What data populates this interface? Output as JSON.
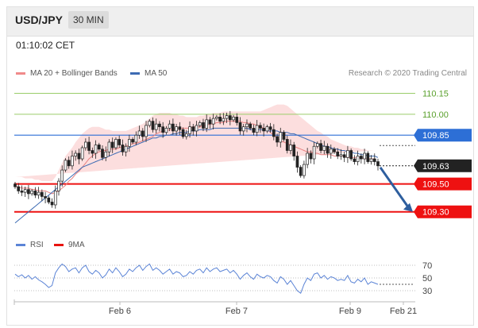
{
  "header": {
    "pair": "USD/JPY",
    "timeframe": "30 MIN"
  },
  "time": "01:10:02 CET",
  "legend": {
    "items": [
      {
        "label": "MA 20 + Bollinger Bands",
        "color": "#f08a8a"
      },
      {
        "label": "MA 50",
        "color": "#3d6bb3"
      }
    ],
    "credit": "Research © 2020 Trading Central"
  },
  "rsi_legend": {
    "items": [
      {
        "label": "RSI",
        "color": "#5b84d6"
      },
      {
        "label": "9MA",
        "color": "#e8140f"
      }
    ]
  },
  "chart_data": [
    {
      "type": "candlestick",
      "title": "",
      "x_ticks": [
        "Feb 6",
        "Feb 7",
        "Feb 9",
        "Feb 21"
      ],
      "price_levels": [
        {
          "value": 110.15,
          "label": "110.15",
          "style": "resistance-line",
          "color": "#9acd6a"
        },
        {
          "value": 110.0,
          "label": "110.00",
          "style": "resistance-line",
          "color": "#9acd6a"
        },
        {
          "value": 109.85,
          "label": "109.85",
          "style": "pivot",
          "color": "#2d6fd6"
        },
        {
          "value": 109.63,
          "label": "109.63",
          "style": "last-price",
          "color": "#222222"
        },
        {
          "value": 109.5,
          "label": "109.50",
          "style": "support",
          "color": "#ee1111"
        },
        {
          "value": 109.3,
          "label": "109.30",
          "style": "support",
          "color": "#ee1111"
        }
      ],
      "ylim": [
        109.27,
        110.21
      ],
      "series": [
        {
          "name": "MA 20 + Bollinger Bands"
        },
        {
          "name": "MA 50"
        }
      ],
      "close": [
        109.48,
        109.45,
        109.44,
        109.46,
        109.43,
        109.45,
        109.42,
        109.44,
        109.41,
        109.4,
        109.37,
        109.35,
        109.45,
        109.52,
        109.6,
        109.67,
        109.63,
        109.7,
        109.72,
        109.68,
        109.76,
        109.8,
        109.74,
        109.72,
        109.78,
        109.75,
        109.69,
        109.73,
        109.8,
        109.76,
        109.82,
        109.78,
        109.73,
        109.77,
        109.82,
        109.8,
        109.85,
        109.88,
        109.84,
        109.92,
        109.95,
        109.89,
        109.93,
        109.91,
        109.87,
        109.9,
        109.93,
        109.88,
        109.91,
        109.89,
        109.84,
        109.86,
        109.91,
        109.88,
        109.92,
        109.94,
        109.9,
        109.96,
        109.93,
        109.97,
        109.98,
        109.95,
        109.97,
        109.99,
        109.96,
        109.98,
        109.94,
        109.88,
        109.91,
        109.93,
        109.9,
        109.87,
        109.92,
        109.9,
        109.88,
        109.91,
        109.89,
        109.84,
        109.8,
        109.87,
        109.82,
        109.74,
        109.78,
        109.7,
        109.62,
        109.56,
        109.64,
        109.72,
        109.68,
        109.77,
        109.79,
        109.74,
        109.77,
        109.72,
        109.75,
        109.73,
        109.7,
        109.71,
        109.69,
        109.74,
        109.68,
        109.66,
        109.7,
        109.68,
        109.72,
        109.66,
        109.68,
        109.66,
        109.63
      ],
      "ma20": [
        109.48,
        109.48,
        109.47,
        109.47,
        109.47,
        109.46,
        109.46,
        109.45,
        109.45,
        109.45,
        109.44,
        109.43,
        109.44,
        109.45,
        109.47,
        109.49,
        109.52,
        109.54,
        109.57,
        109.59,
        109.62,
        109.65,
        109.68,
        109.7,
        109.72,
        109.73,
        109.74,
        109.74,
        109.75,
        109.75,
        109.75,
        109.76,
        109.77,
        109.77,
        109.78,
        109.79,
        109.79,
        109.8,
        109.81,
        109.82,
        109.83,
        109.84,
        109.86,
        109.87,
        109.88,
        109.88,
        109.89,
        109.89,
        109.9,
        109.9,
        109.9,
        109.9,
        109.9,
        109.91,
        109.91,
        109.91,
        109.92,
        109.92,
        109.93,
        109.93,
        109.94,
        109.94,
        109.94,
        109.95,
        109.95,
        109.95,
        109.95,
        109.95,
        109.94,
        109.94,
        109.93,
        109.93,
        109.92,
        109.91,
        109.9,
        109.89,
        109.87,
        109.85,
        109.83,
        109.81,
        109.8,
        109.79,
        109.78,
        109.77,
        109.76,
        109.75,
        109.74,
        109.73,
        109.73,
        109.72,
        109.72,
        109.71,
        109.71,
        109.71,
        109.71,
        109.7,
        109.7,
        109.7,
        109.7,
        109.69,
        109.69,
        109.69,
        109.69,
        109.69,
        109.68,
        109.68,
        109.68,
        109.68
      ],
      "ma50": [
        109.22,
        109.24,
        109.26,
        109.28,
        109.3,
        109.32,
        109.34,
        109.36,
        109.38,
        109.4,
        109.42,
        109.44,
        109.46,
        109.48,
        109.5,
        109.52,
        109.54,
        109.56,
        109.58,
        109.6,
        109.62,
        109.63,
        109.64,
        109.65,
        109.66,
        109.67,
        109.68,
        109.69,
        109.7,
        109.71,
        109.72,
        109.73,
        109.74,
        109.75,
        109.76,
        109.77,
        109.78,
        109.79,
        109.8,
        109.81,
        109.82,
        109.83,
        109.83,
        109.84,
        109.84,
        109.85,
        109.85,
        109.86,
        109.86,
        109.87,
        109.87,
        109.87,
        109.88,
        109.88,
        109.88,
        109.89,
        109.89,
        109.89,
        109.89,
        109.9,
        109.9,
        109.9,
        109.9,
        109.9,
        109.9,
        109.9,
        109.9,
        109.9,
        109.9,
        109.9,
        109.89,
        109.89,
        109.89,
        109.89,
        109.89,
        109.88,
        109.88,
        109.88,
        109.88,
        109.87,
        109.87,
        109.87,
        109.86,
        109.86,
        109.85,
        109.84,
        109.83,
        109.82,
        109.81,
        109.8,
        109.79,
        109.78,
        109.77,
        109.77,
        109.76,
        109.75,
        109.75,
        109.74,
        109.74,
        109.73,
        109.73,
        109.72,
        109.72,
        109.71,
        109.71,
        109.7,
        109.7,
        109.7,
        109.69
      ],
      "bb_upper": [
        109.55,
        109.55,
        109.55,
        109.54,
        109.54,
        109.54,
        109.53,
        109.53,
        109.52,
        109.52,
        109.52,
        109.52,
        109.55,
        109.6,
        109.65,
        109.7,
        109.73,
        109.76,
        109.8,
        109.83,
        109.86,
        109.88,
        109.9,
        109.91,
        109.91,
        109.91,
        109.9,
        109.89,
        109.89,
        109.88,
        109.88,
        109.88,
        109.88,
        109.88,
        109.89,
        109.9,
        109.91,
        109.92,
        109.93,
        109.95,
        109.97,
        109.99,
        110.0,
        110.01,
        110.01,
        110.01,
        110.01,
        110.0,
        110.0,
        109.99,
        109.99,
        109.98,
        109.98,
        109.98,
        109.98,
        109.99,
        109.99,
        110.0,
        110.0,
        110.01,
        110.01,
        110.01,
        110.02,
        110.02,
        110.02,
        110.02,
        110.02,
        110.02,
        110.02,
        110.02,
        110.02,
        110.02,
        110.02,
        110.02,
        110.03,
        110.04,
        110.05,
        110.06,
        110.07,
        110.07,
        110.07,
        110.06,
        110.04,
        110.02,
        110.0,
        109.98,
        109.96,
        109.94,
        109.92,
        109.9,
        109.88,
        109.87,
        109.85,
        109.84,
        109.82,
        109.81,
        109.8,
        109.79,
        109.78,
        109.77,
        109.77,
        109.76,
        109.76,
        109.75,
        109.75,
        109.74,
        109.74,
        109.74
      ],
      "bb_lower": [
        109.41,
        109.4,
        109.39,
        109.39,
        109.38,
        109.38,
        109.37,
        109.37,
        109.36,
        109.35,
        109.34,
        109.32,
        109.31,
        109.3,
        109.3,
        109.29,
        109.3,
        109.32,
        109.35,
        109.37,
        109.4,
        109.43,
        109.47,
        109.51,
        109.55,
        109.58,
        109.6,
        109.62,
        109.63,
        109.64,
        109.65,
        109.66,
        109.67,
        109.68,
        109.68,
        109.68,
        109.68,
        109.68,
        109.68,
        109.68,
        109.68,
        109.69,
        109.71,
        109.73,
        109.75,
        109.77,
        109.79,
        109.8,
        109.81,
        109.81,
        109.82,
        109.82,
        109.82,
        109.82,
        109.82,
        109.82,
        109.83,
        109.83,
        109.84,
        109.85,
        109.86,
        109.87,
        109.88,
        109.88,
        109.88,
        109.88,
        109.88,
        109.88,
        109.87,
        109.86,
        109.85,
        109.84,
        109.82,
        109.8,
        109.77,
        109.74,
        109.7,
        109.66,
        109.62,
        109.58,
        109.55,
        109.53,
        109.52,
        109.52,
        109.52,
        109.53,
        109.54,
        109.55,
        109.56,
        109.57,
        109.58,
        109.59,
        109.6,
        109.6,
        109.61,
        109.61,
        109.61,
        109.62,
        109.62,
        109.62,
        109.62,
        109.62,
        109.62,
        109.62,
        109.62,
        109.62,
        109.62,
        109.62
      ],
      "forecast_arrow": {
        "from": 109.63,
        "to": 109.3
      }
    },
    {
      "type": "line",
      "title": "RSI",
      "y_ticks": [
        70,
        50,
        30
      ],
      "ylim": [
        20,
        80
      ],
      "series": [
        {
          "name": "RSI",
          "values": [
            56,
            52,
            55,
            50,
            54,
            48,
            52,
            47,
            44,
            40,
            35,
            38,
            58,
            66,
            72,
            68,
            60,
            64,
            66,
            58,
            66,
            70,
            60,
            56,
            62,
            58,
            50,
            55,
            64,
            58,
            66,
            60,
            52,
            56,
            64,
            60,
            66,
            70,
            62,
            68,
            72,
            62,
            66,
            62,
            56,
            60,
            64,
            56,
            60,
            58,
            52,
            54,
            60,
            56,
            62,
            64,
            58,
            66,
            60,
            64,
            66,
            60,
            62,
            64,
            58,
            62,
            56,
            48,
            54,
            58,
            52,
            48,
            56,
            52,
            50,
            54,
            52,
            46,
            42,
            52,
            48,
            40,
            46,
            38,
            30,
            26,
            40,
            50,
            46,
            56,
            58,
            50,
            54,
            48,
            52,
            50,
            46,
            48,
            46,
            54,
            44,
            42,
            48,
            44,
            50,
            40,
            44,
            42,
            40
          ]
        },
        {
          "name": "9MA",
          "values": []
        }
      ]
    }
  ]
}
